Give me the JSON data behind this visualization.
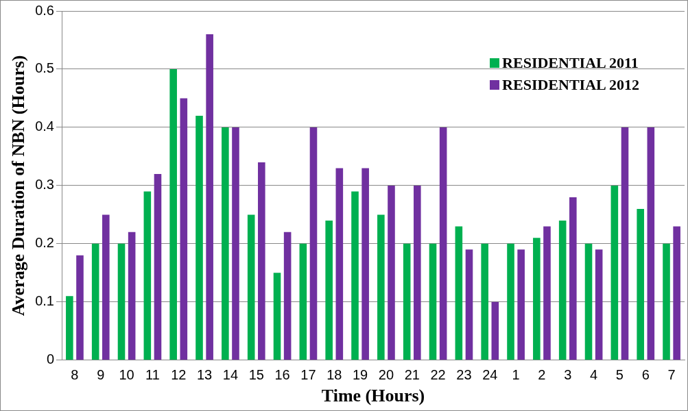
{
  "chart_data": {
    "type": "bar",
    "xlabel": "Time (Hours)",
    "ylabel": "Average Duration of NBN (Hours)",
    "categories": [
      "8",
      "9",
      "10",
      "11",
      "12",
      "13",
      "14",
      "15",
      "16",
      "17",
      "18",
      "19",
      "20",
      "21",
      "22",
      "23",
      "24",
      "1",
      "2",
      "3",
      "4",
      "5",
      "6",
      "7"
    ],
    "series": [
      {
        "name": "RESIDENTIAL 2011",
        "color": "#00b050",
        "values": [
          0.11,
          0.2,
          0.2,
          0.29,
          0.5,
          0.42,
          0.4,
          0.25,
          0.15,
          0.2,
          0.24,
          0.29,
          0.25,
          0.2,
          0.2,
          0.23,
          0.2,
          0.2,
          0.21,
          0.24,
          0.2,
          0.3,
          0.26,
          0.2
        ]
      },
      {
        "name": "RESIDENTIAL 2012",
        "color": "#7030a0",
        "values": [
          0.18,
          0.25,
          0.22,
          0.32,
          0.45,
          0.56,
          0.4,
          0.34,
          0.22,
          0.4,
          0.33,
          0.33,
          0.3,
          0.3,
          0.4,
          0.19,
          0.1,
          0.19,
          0.23,
          0.28,
          0.19,
          0.4,
          0.4,
          0.23
        ]
      }
    ],
    "ylim": [
      0,
      0.6
    ],
    "yticks": [
      0,
      0.1,
      0.2,
      0.3,
      0.4,
      0.5,
      0.6
    ],
    "grid": "y",
    "legend": "top right"
  }
}
